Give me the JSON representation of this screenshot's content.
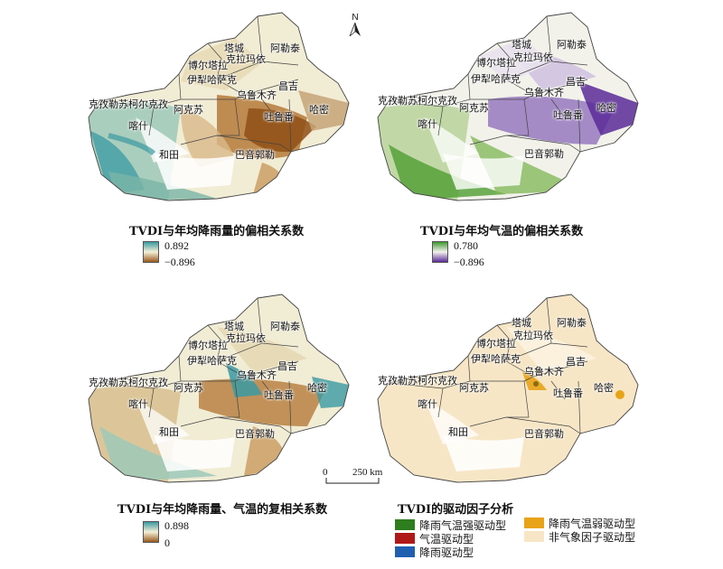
{
  "north_arrow": {
    "label": "N"
  },
  "regions": {
    "tacheng": "塔城",
    "altay": "阿勒泰",
    "karamay": "克拉玛依",
    "bortala": "博尔塔拉",
    "ili": "伊犁哈萨克",
    "changji": "昌吉",
    "urumqi": "乌鲁木齐",
    "kizilsu": "克孜勒苏柯尔克孜",
    "aksu": "阿克苏",
    "turpan": "吐鲁番",
    "hami": "哈密",
    "kashgar": "喀什",
    "hotan": "和田",
    "bayingolin": "巴音郭勒"
  },
  "panels": [
    {
      "id": "precip",
      "caption": "TVDI与年均降雨量的偏相关系数",
      "legend_max": "0.892",
      "legend_min": "−0.896",
      "colors": {
        "high": "#3a9aa3",
        "mid": "#f4efd6",
        "low": "#9a5a1e"
      }
    },
    {
      "id": "temp",
      "caption": "TVDI与年均气温的偏相关系数",
      "legend_max": "0.780",
      "legend_min": "−0.896",
      "colors": {
        "high": "#3f9a2e",
        "mid": "#f4f1ee",
        "low": "#5b2a98"
      }
    },
    {
      "id": "multi",
      "caption": "TVDI与年均降雨量、气温的复相关系数",
      "legend_max": "0.898",
      "legend_min": "0",
      "colors": {
        "high": "#3a9aa3",
        "mid": "#f4efd6",
        "low": "#9a5a1e"
      }
    },
    {
      "id": "driver",
      "caption": "TVDI的驱动因子分析",
      "categories": [
        {
          "label": "降雨气温强驱动型",
          "color": "#2e7d1e"
        },
        {
          "label": "气温驱动型",
          "color": "#b01818"
        },
        {
          "label": "降雨驱动型",
          "color": "#1f5fb0"
        },
        {
          "label": "降雨气温弱驱动型",
          "color": "#e8a317"
        },
        {
          "label": "非气象因子驱动型",
          "color": "#f7e6c6"
        }
      ]
    }
  ],
  "scale": {
    "zero": "0",
    "distance": "250 km"
  }
}
